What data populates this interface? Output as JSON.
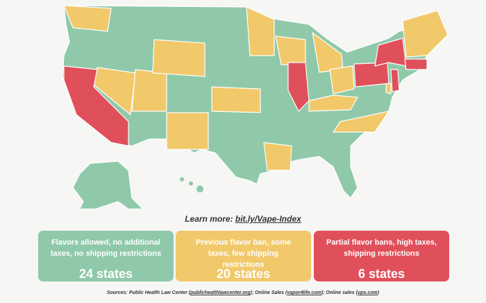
{
  "learn_more": {
    "label": "Learn more:",
    "link": "bit.ly/Vape-Index"
  },
  "legend": [
    {
      "description": "Flavors allowed, no additional taxes, no shipping restrictions",
      "count": "24 states",
      "color": "#8fc9aa"
    },
    {
      "description": "Previous flavor ban, some taxes, few shipping restrictions",
      "count": "20 states",
      "color": "#f1c96b"
    },
    {
      "description": "Partial flavor bans, high taxes, shipping restrictions",
      "count": "6 states",
      "color": "#e0505a"
    }
  ],
  "sources": [
    "Sources: Public Health Law Center (",
    "publichealthlawcenter.org",
    "); Online Sales (",
    "vapor4life.com",
    "); Online sales (",
    "ups.com",
    ")"
  ]
}
